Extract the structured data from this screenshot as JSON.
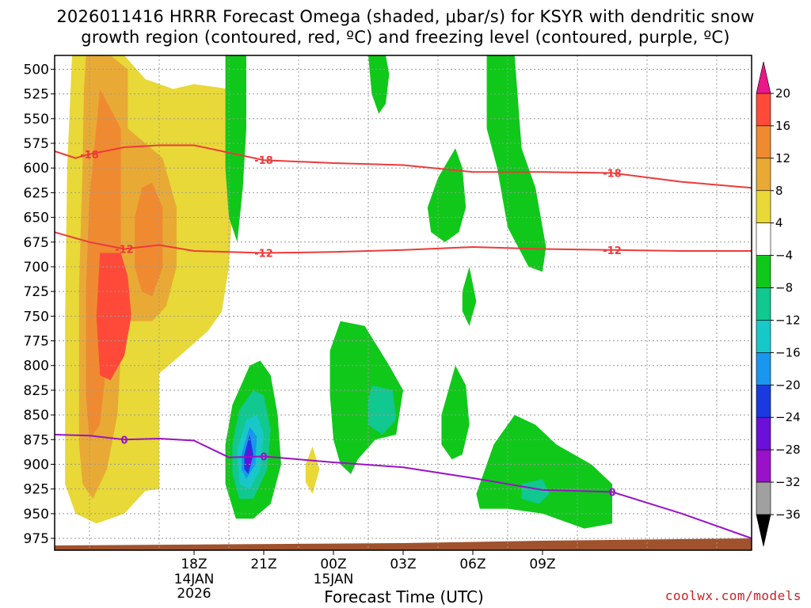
{
  "chart_data": {
    "type": "heatmap",
    "title": "2026011416 HRRR Forecast Omega (shaded, μbar/s) for KSYR with dendritic snow\ngrowth region (contoured, red, ºC) and freezing level (contoured, purple, ºC)",
    "xlabel": "Forecast Time (UTC)",
    "ylabel": "",
    "x_hours": [
      15,
      25
    ],
    "x_ticks": [
      {
        "hour": 17,
        "label": "18Z",
        "sub1": "14JAN",
        "sub2": "2026"
      },
      {
        "hour": 18,
        "label": "21Z",
        "sub1": "",
        "sub2": ""
      },
      {
        "hour": 19,
        "label": "00Z",
        "sub1": "15JAN",
        "sub2": ""
      },
      {
        "hour": 20,
        "label": "03Z",
        "sub1": "",
        "sub2": ""
      },
      {
        "hour": 21,
        "label": "06Z",
        "sub1": "",
        "sub2": ""
      },
      {
        "hour": 22,
        "label": "09Z",
        "sub1": "",
        "sub2": ""
      }
    ],
    "y_pressure_ticks": [
      500,
      525,
      550,
      575,
      600,
      625,
      650,
      675,
      700,
      725,
      750,
      775,
      800,
      825,
      850,
      875,
      900,
      925,
      950,
      975
    ],
    "grid": true,
    "colorbar": {
      "levels": [
        -36,
        -32,
        -28,
        -24,
        -20,
        -16,
        -12,
        -8,
        -4,
        4,
        8,
        12,
        16,
        20
      ],
      "labels": [
        "20",
        "16",
        "12",
        "8",
        "4",
        "−4",
        "−8",
        "−12",
        "−16",
        "−20",
        "−24",
        "−28",
        "−32",
        "−36"
      ],
      "colors": {
        "above_20": "#e8178a",
        "16_20": "#ff4a3a",
        "12_16": "#f08a30",
        "8_12": "#e8aa35",
        "4_8": "#e8d838",
        "neg4_4": "#ffffff",
        "neg8_neg4": "#10c81a",
        "neg12_neg8": "#10c890",
        "neg16_neg12": "#18c8c8",
        "neg20_neg16": "#1a96ee",
        "neg24_neg20": "#1a3ae0",
        "neg28_neg24": "#6a10d8",
        "neg32_neg28": "#9a12c8",
        "neg36_neg32": "#a0a0a0",
        "below_neg36": "#000000"
      }
    },
    "contours": [
      {
        "name": "-18 ºC",
        "color": "#ee3a3a",
        "labels": [
          "-18",
          "-18",
          "-18"
        ],
        "points": [
          [
            15.0,
            583
          ],
          [
            15.3,
            590
          ],
          [
            15.5,
            586
          ],
          [
            16.0,
            579
          ],
          [
            16.5,
            577
          ],
          [
            17.0,
            577
          ],
          [
            18.0,
            592
          ],
          [
            19.0,
            595
          ],
          [
            20.0,
            597
          ],
          [
            21.0,
            604
          ],
          [
            22.0,
            604
          ],
          [
            23.0,
            605
          ],
          [
            24.0,
            614
          ],
          [
            25.0,
            620
          ]
        ]
      },
      {
        "name": "-12 ºC",
        "color": "#ee3a3a",
        "labels": [
          "-12",
          "-12",
          "-12"
        ],
        "points": [
          [
            15.0,
            665
          ],
          [
            15.5,
            675
          ],
          [
            16.0,
            682
          ],
          [
            16.5,
            678
          ],
          [
            17.0,
            684
          ],
          [
            18.0,
            686
          ],
          [
            19.0,
            685
          ],
          [
            20.0,
            683
          ],
          [
            21.0,
            680
          ],
          [
            22.0,
            682
          ],
          [
            23.0,
            683
          ],
          [
            24.0,
            684
          ],
          [
            25.0,
            684
          ]
        ]
      },
      {
        "name": "0 ºC",
        "color": "#9a12c8",
        "labels": [
          "0",
          "0",
          "0"
        ],
        "points": [
          [
            15.0,
            870
          ],
          [
            15.5,
            871
          ],
          [
            16.0,
            875
          ],
          [
            16.5,
            874
          ],
          [
            17.0,
            876
          ],
          [
            17.5,
            893
          ],
          [
            18.0,
            892
          ],
          [
            19.0,
            898
          ],
          [
            20.0,
            903
          ],
          [
            21.0,
            914
          ],
          [
            22.0,
            926
          ],
          [
            23.0,
            928
          ],
          [
            24.0,
            950
          ],
          [
            25.0,
            975
          ]
        ]
      }
    ]
  },
  "credit": "coolwx.com/models",
  "colors": {
    "terrain": "#a0522d",
    "grid": "#9a9a9a"
  }
}
